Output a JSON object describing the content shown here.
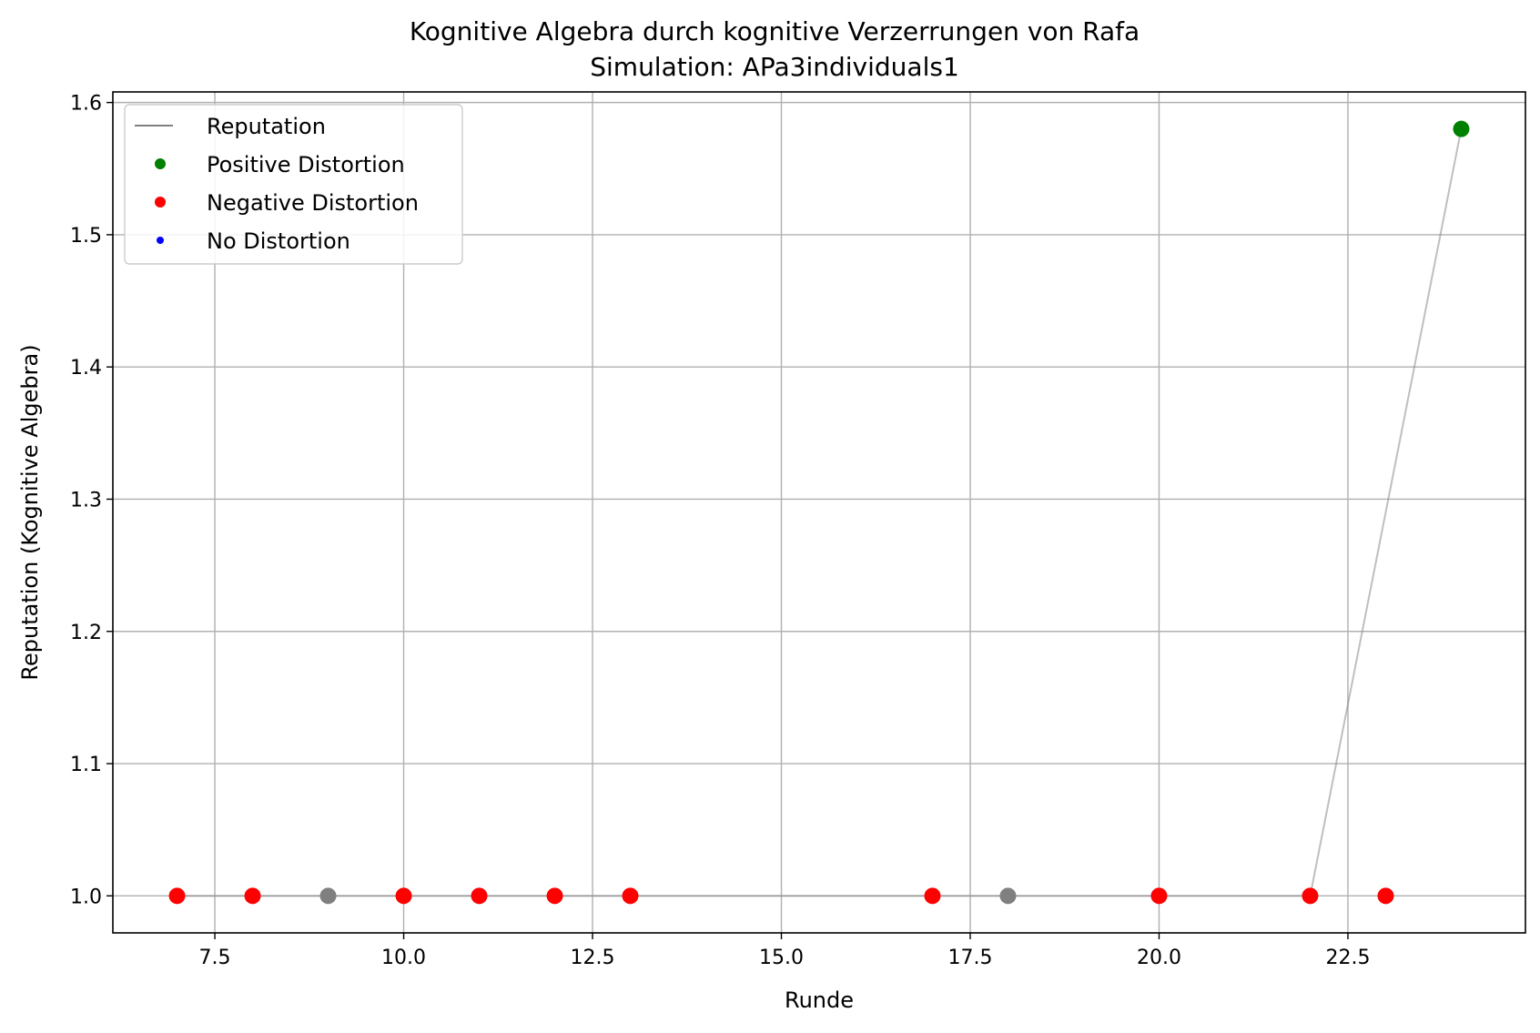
{
  "chart_data": {
    "type": "scatter",
    "title": "Kognitive Algebra durch kognitive Verzerrungen von Rafa",
    "subtitle": "Simulation: APa3individuals1",
    "xlabel": "Runde",
    "ylabel": "Reputation (Kognitive Algebra)",
    "xlim": [
      6.15,
      24.85
    ],
    "ylim": [
      0.972,
      1.608
    ],
    "xticks": [
      7.5,
      10.0,
      12.5,
      15.0,
      17.5,
      20.0,
      22.5
    ],
    "xtick_labels": [
      "7.5",
      "10.0",
      "12.5",
      "15.0",
      "17.5",
      "20.0",
      "22.5"
    ],
    "yticks": [
      1.0,
      1.1,
      1.2,
      1.3,
      1.4,
      1.5,
      1.6
    ],
    "ytick_labels": [
      "1.0",
      "1.1",
      "1.2",
      "1.3",
      "1.4",
      "1.5",
      "1.6"
    ],
    "grid": true,
    "legend_position": "top-left",
    "legend": [
      {
        "label": "Reputation",
        "marker": "line",
        "color": "#808080"
      },
      {
        "label": "Positive Distortion",
        "marker": "dot",
        "color": "#008000"
      },
      {
        "label": "Negative Distortion",
        "marker": "dot",
        "color": "#ff0000"
      },
      {
        "label": "No Distortion",
        "marker": "dot",
        "color": "#0000ff"
      }
    ],
    "reputation_line": {
      "color": "#808080",
      "x": [
        7,
        8,
        9,
        10,
        11,
        12,
        13,
        17,
        18,
        20,
        22,
        24
      ],
      "y": [
        1.0,
        1.0,
        1.0,
        1.0,
        1.0,
        1.0,
        1.0,
        1.0,
        1.0,
        1.0,
        1.0,
        1.58
      ]
    },
    "points": [
      {
        "x": 7,
        "y": 1.0,
        "color": "#ff0000"
      },
      {
        "x": 8,
        "y": 1.0,
        "color": "#ff0000"
      },
      {
        "x": 9,
        "y": 1.0,
        "color": "#808080"
      },
      {
        "x": 10,
        "y": 1.0,
        "color": "#ff0000"
      },
      {
        "x": 11,
        "y": 1.0,
        "color": "#ff0000"
      },
      {
        "x": 12,
        "y": 1.0,
        "color": "#ff0000"
      },
      {
        "x": 13,
        "y": 1.0,
        "color": "#ff0000"
      },
      {
        "x": 17,
        "y": 1.0,
        "color": "#ff0000"
      },
      {
        "x": 18,
        "y": 1.0,
        "color": "#808080"
      },
      {
        "x": 20,
        "y": 1.0,
        "color": "#ff0000"
      },
      {
        "x": 22,
        "y": 1.0,
        "color": "#ff0000"
      },
      {
        "x": 23,
        "y": 1.0,
        "color": "#ff0000"
      },
      {
        "x": 24,
        "y": 1.58,
        "color": "#008000"
      }
    ]
  }
}
